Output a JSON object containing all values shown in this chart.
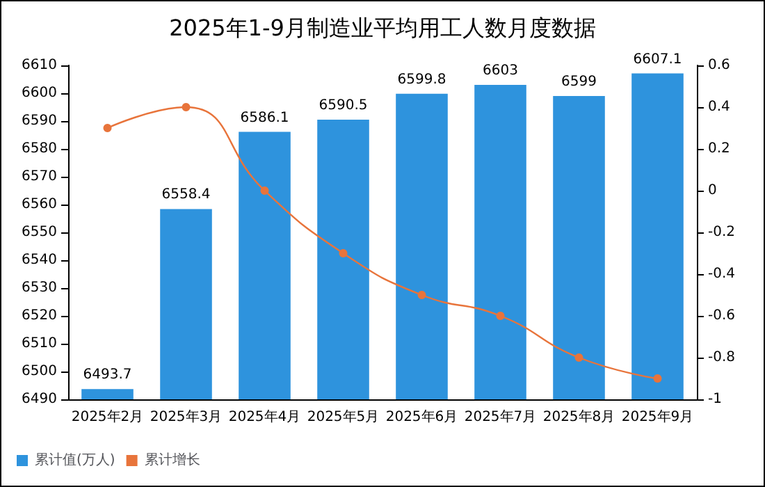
{
  "chart_data": {
    "type": "bar",
    "title": "2025年1-9月制造业平均用工人数月度数据",
    "categories": [
      "2025年2月",
      "2025年3月",
      "2025年4月",
      "2025年5月",
      "2025年6月",
      "2025年7月",
      "2025年8月",
      "2025年9月"
    ],
    "series": [
      {
        "name": "累计值(万人)",
        "color": "#2e93dd",
        "values": [
          6493.7,
          6558.4,
          6586.1,
          6590.5,
          6599.8,
          6603,
          6599,
          6607.1
        ],
        "value_labels": [
          "6493.7",
          "6558.4",
          "6586.1",
          "6590.5",
          "6599.8",
          "6603",
          "6599",
          "6607.1"
        ]
      },
      {
        "name": "累计增长",
        "type": "line",
        "axis": "y2",
        "color": "#e8743b",
        "marker": "circle",
        "values": [
          0.3,
          0.4,
          0,
          -0.3,
          -0.5,
          -0.6,
          -0.8,
          -0.9
        ]
      }
    ],
    "ylim": [
      6490,
      6610
    ],
    "yticks": [
      6490,
      6500,
      6510,
      6520,
      6530,
      6540,
      6550,
      6560,
      6570,
      6580,
      6590,
      6600,
      6610
    ],
    "y2lim": [
      -1,
      0.6
    ],
    "y2ticks": [
      -1,
      -0.8,
      -0.6,
      -0.4,
      -0.2,
      0,
      0.2,
      0.4,
      0.6
    ],
    "legend": "bottom left"
  }
}
